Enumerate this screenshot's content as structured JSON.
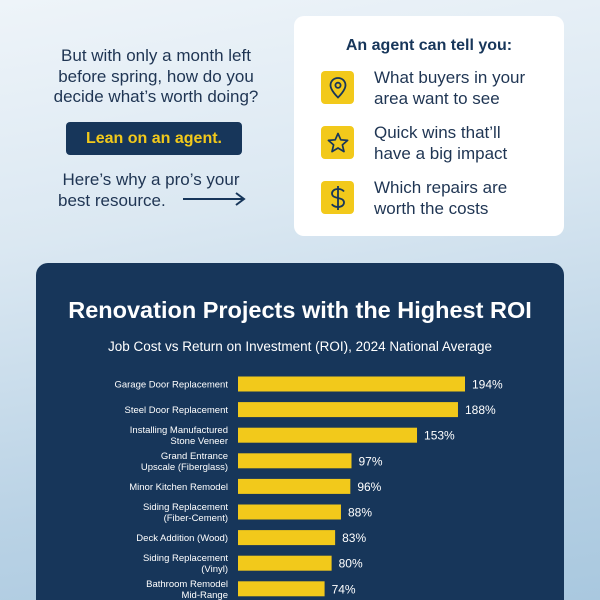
{
  "intro": {
    "lines": [
      "But with only a month left",
      "before spring, how do you",
      "decide what’s worth doing?"
    ],
    "cta_label": "Lean on an agent.",
    "why_lines": [
      "Here’s why a pro’s your",
      "best resource."
    ]
  },
  "card": {
    "title": "An agent can tell you:",
    "tips": [
      {
        "icon": "map-pin-icon",
        "lines": [
          "What buyers in your",
          "area want to see"
        ]
      },
      {
        "icon": "star-icon",
        "lines": [
          "Quick wins that’ll",
          "have a big impact"
        ]
      },
      {
        "icon": "dollar-icon",
        "lines": [
          "Which repairs are",
          "worth the costs"
        ]
      }
    ]
  },
  "colors": {
    "navy": "#17365a",
    "accent_yellow": "#f2c91b",
    "background": "#c8dcec"
  },
  "chart_data": {
    "type": "bar",
    "orientation": "horizontal",
    "title": "Renovation Projects with the Highest ROI",
    "subtitle": "Job Cost vs Return on Investment (ROI), 2024 National Average",
    "categories": [
      [
        "Garage Door Replacement"
      ],
      [
        "Steel Door Replacement"
      ],
      [
        "Installing Manufactured",
        "Stone Veneer"
      ],
      [
        "Grand Entrance",
        "Upscale (Fiberglass)"
      ],
      [
        "Minor Kitchen Remodel"
      ],
      [
        "Siding Replacement",
        "(Fiber-Cement)"
      ],
      [
        "Deck Addition (Wood)"
      ],
      [
        "Siding Replacement",
        "(Vinyl)"
      ],
      [
        "Bathroom Remodel",
        "Mid-Range"
      ]
    ],
    "values": [
      194,
      188,
      153,
      97,
      96,
      88,
      83,
      80,
      74
    ],
    "value_labels": [
      "194%",
      "188%",
      "153%",
      "97%",
      "96%",
      "88%",
      "83%",
      "80%",
      "74%"
    ],
    "unit": "%",
    "bar_color": "#f2c91b",
    "xlim": [
      0,
      200
    ],
    "grid": false,
    "legend": "none"
  }
}
